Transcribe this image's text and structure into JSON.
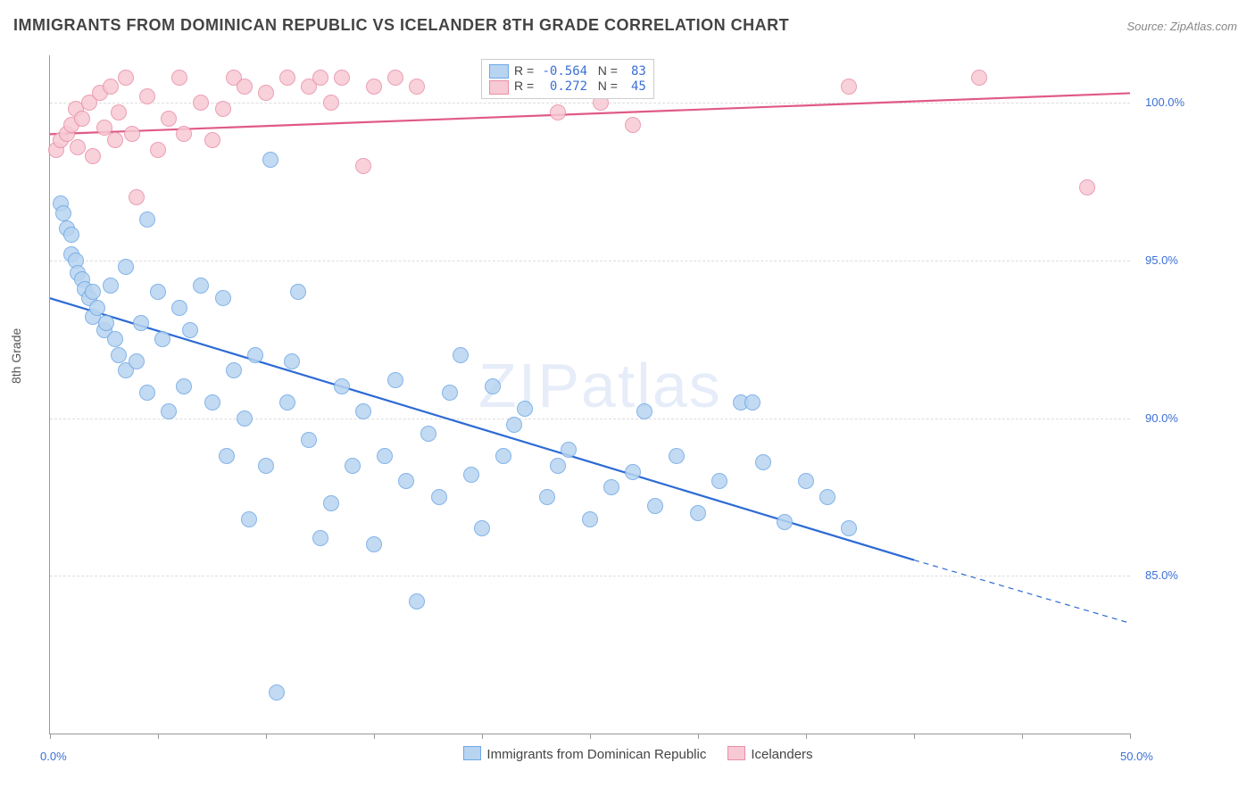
{
  "title": "IMMIGRANTS FROM DOMINICAN REPUBLIC VS ICELANDER 8TH GRADE CORRELATION CHART",
  "source_label": "Source: ZipAtlas.com",
  "ylabel": "8th Grade",
  "watermark": "ZIPatlas",
  "xlim": [
    0,
    50
  ],
  "ylim": [
    80,
    101.5
  ],
  "xtick_labels": [
    {
      "v": 0,
      "t": "0.0%"
    },
    {
      "v": 50,
      "t": "50.0%"
    }
  ],
  "xtick_marks": [
    0,
    5,
    10,
    15,
    20,
    25,
    30,
    35,
    40,
    45,
    50
  ],
  "ytick_labels": [
    {
      "v": 85,
      "t": "85.0%"
    },
    {
      "v": 90,
      "t": "90.0%"
    },
    {
      "v": 95,
      "t": "95.0%"
    },
    {
      "v": 100,
      "t": "100.0%"
    }
  ],
  "grid_h": [
    85,
    90,
    95,
    100
  ],
  "grid_color": "#dddddd",
  "background_color": "#ffffff",
  "series": [
    {
      "key": "dominican",
      "label": "Immigrants from Dominican Republic",
      "color_fill": "#b8d4f0",
      "color_stroke": "#6fa8e6",
      "marker_radius": 9,
      "R": "-0.564",
      "N": "83",
      "trend": {
        "x1": 0,
        "y1": 93.8,
        "x2_solid": 40,
        "y2_solid": 85.5,
        "x2_dash": 50,
        "y2_dash": 83.5,
        "stroke": "#2d6bd4",
        "width": 2.2
      },
      "points": [
        [
          0.5,
          96.8
        ],
        [
          0.6,
          96.5
        ],
        [
          0.8,
          96.0
        ],
        [
          1.0,
          95.8
        ],
        [
          1.0,
          95.2
        ],
        [
          1.2,
          95.0
        ],
        [
          1.3,
          94.6
        ],
        [
          1.5,
          94.4
        ],
        [
          1.6,
          94.1
        ],
        [
          1.8,
          93.8
        ],
        [
          2.0,
          94.0
        ],
        [
          2.0,
          93.2
        ],
        [
          2.2,
          93.5
        ],
        [
          2.5,
          92.8
        ],
        [
          2.6,
          93.0
        ],
        [
          2.8,
          94.2
        ],
        [
          3.0,
          92.5
        ],
        [
          3.2,
          92.0
        ],
        [
          3.5,
          94.8
        ],
        [
          3.5,
          91.5
        ],
        [
          4.0,
          91.8
        ],
        [
          4.2,
          93.0
        ],
        [
          4.5,
          90.8
        ],
        [
          4.5,
          96.3
        ],
        [
          5.0,
          94.0
        ],
        [
          5.2,
          92.5
        ],
        [
          5.5,
          90.2
        ],
        [
          6.0,
          93.5
        ],
        [
          6.2,
          91.0
        ],
        [
          6.5,
          92.8
        ],
        [
          7.0,
          94.2
        ],
        [
          7.5,
          90.5
        ],
        [
          8.0,
          93.8
        ],
        [
          8.2,
          88.8
        ],
        [
          8.5,
          91.5
        ],
        [
          9.0,
          90.0
        ],
        [
          9.2,
          86.8
        ],
        [
          9.5,
          92.0
        ],
        [
          10.0,
          88.5
        ],
        [
          10.2,
          98.2
        ],
        [
          10.5,
          81.3
        ],
        [
          11.0,
          90.5
        ],
        [
          11.2,
          91.8
        ],
        [
          11.5,
          94.0
        ],
        [
          12.0,
          89.3
        ],
        [
          12.5,
          86.2
        ],
        [
          13.0,
          87.3
        ],
        [
          13.5,
          91.0
        ],
        [
          14.0,
          88.5
        ],
        [
          14.5,
          90.2
        ],
        [
          15.0,
          86.0
        ],
        [
          15.5,
          88.8
        ],
        [
          16.0,
          91.2
        ],
        [
          16.5,
          88.0
        ],
        [
          17.0,
          84.2
        ],
        [
          17.5,
          89.5
        ],
        [
          18.0,
          87.5
        ],
        [
          18.5,
          90.8
        ],
        [
          19.0,
          92.0
        ],
        [
          19.5,
          88.2
        ],
        [
          20.0,
          86.5
        ],
        [
          20.5,
          91.0
        ],
        [
          21.0,
          88.8
        ],
        [
          21.5,
          89.8
        ],
        [
          22.0,
          90.3
        ],
        [
          23.0,
          87.5
        ],
        [
          23.5,
          88.5
        ],
        [
          24.0,
          89.0
        ],
        [
          25.0,
          86.8
        ],
        [
          26.0,
          87.8
        ],
        [
          27.0,
          88.3
        ],
        [
          27.5,
          90.2
        ],
        [
          28.0,
          87.2
        ],
        [
          29.0,
          88.8
        ],
        [
          30.0,
          87.0
        ],
        [
          31.0,
          88.0
        ],
        [
          32.0,
          90.5
        ],
        [
          32.5,
          90.5
        ],
        [
          33.0,
          88.6
        ],
        [
          34.0,
          86.7
        ],
        [
          35.0,
          88.0
        ],
        [
          36.0,
          87.5
        ],
        [
          37.0,
          86.5
        ]
      ]
    },
    {
      "key": "icelanders",
      "label": "Icelanders",
      "color_fill": "#f7c9d4",
      "color_stroke": "#e88fa8",
      "marker_radius": 9,
      "R": "0.272",
      "N": "45",
      "trend": {
        "x1": 0,
        "y1": 99.0,
        "x2_solid": 50,
        "y2_solid": 100.3,
        "x2_dash": 50,
        "y2_dash": 100.3,
        "stroke": "#e05a85",
        "width": 2.2
      },
      "points": [
        [
          0.3,
          98.5
        ],
        [
          0.5,
          98.8
        ],
        [
          0.8,
          99.0
        ],
        [
          1.0,
          99.3
        ],
        [
          1.2,
          99.8
        ],
        [
          1.3,
          98.6
        ],
        [
          1.5,
          99.5
        ],
        [
          1.8,
          100.0
        ],
        [
          2.0,
          98.3
        ],
        [
          2.3,
          100.3
        ],
        [
          2.5,
          99.2
        ],
        [
          2.8,
          100.5
        ],
        [
          3.0,
          98.8
        ],
        [
          3.2,
          99.7
        ],
        [
          3.5,
          100.8
        ],
        [
          3.8,
          99.0
        ],
        [
          4.0,
          97.0
        ],
        [
          4.5,
          100.2
        ],
        [
          5.0,
          98.5
        ],
        [
          5.5,
          99.5
        ],
        [
          6.0,
          100.8
        ],
        [
          6.2,
          99.0
        ],
        [
          7.0,
          100.0
        ],
        [
          7.5,
          98.8
        ],
        [
          8.0,
          99.8
        ],
        [
          8.5,
          100.8
        ],
        [
          9.0,
          100.5
        ],
        [
          10.0,
          100.3
        ],
        [
          11.0,
          100.8
        ],
        [
          12.0,
          100.5
        ],
        [
          12.5,
          100.8
        ],
        [
          13.0,
          100.0
        ],
        [
          13.5,
          100.8
        ],
        [
          14.5,
          98.0
        ],
        [
          15.0,
          100.5
        ],
        [
          16.0,
          100.8
        ],
        [
          17.0,
          100.5
        ],
        [
          22.0,
          100.8
        ],
        [
          23.5,
          99.7
        ],
        [
          24.5,
          100.5
        ],
        [
          25.5,
          100.0
        ],
        [
          27.0,
          99.3
        ],
        [
          37.0,
          100.5
        ],
        [
          43.0,
          100.8
        ],
        [
          48.0,
          97.3
        ]
      ]
    }
  ],
  "legend_box": {
    "R_label": "R =",
    "N_label": "N ="
  },
  "bottom_legend": {
    "items": [
      "dominican",
      "icelanders"
    ]
  }
}
